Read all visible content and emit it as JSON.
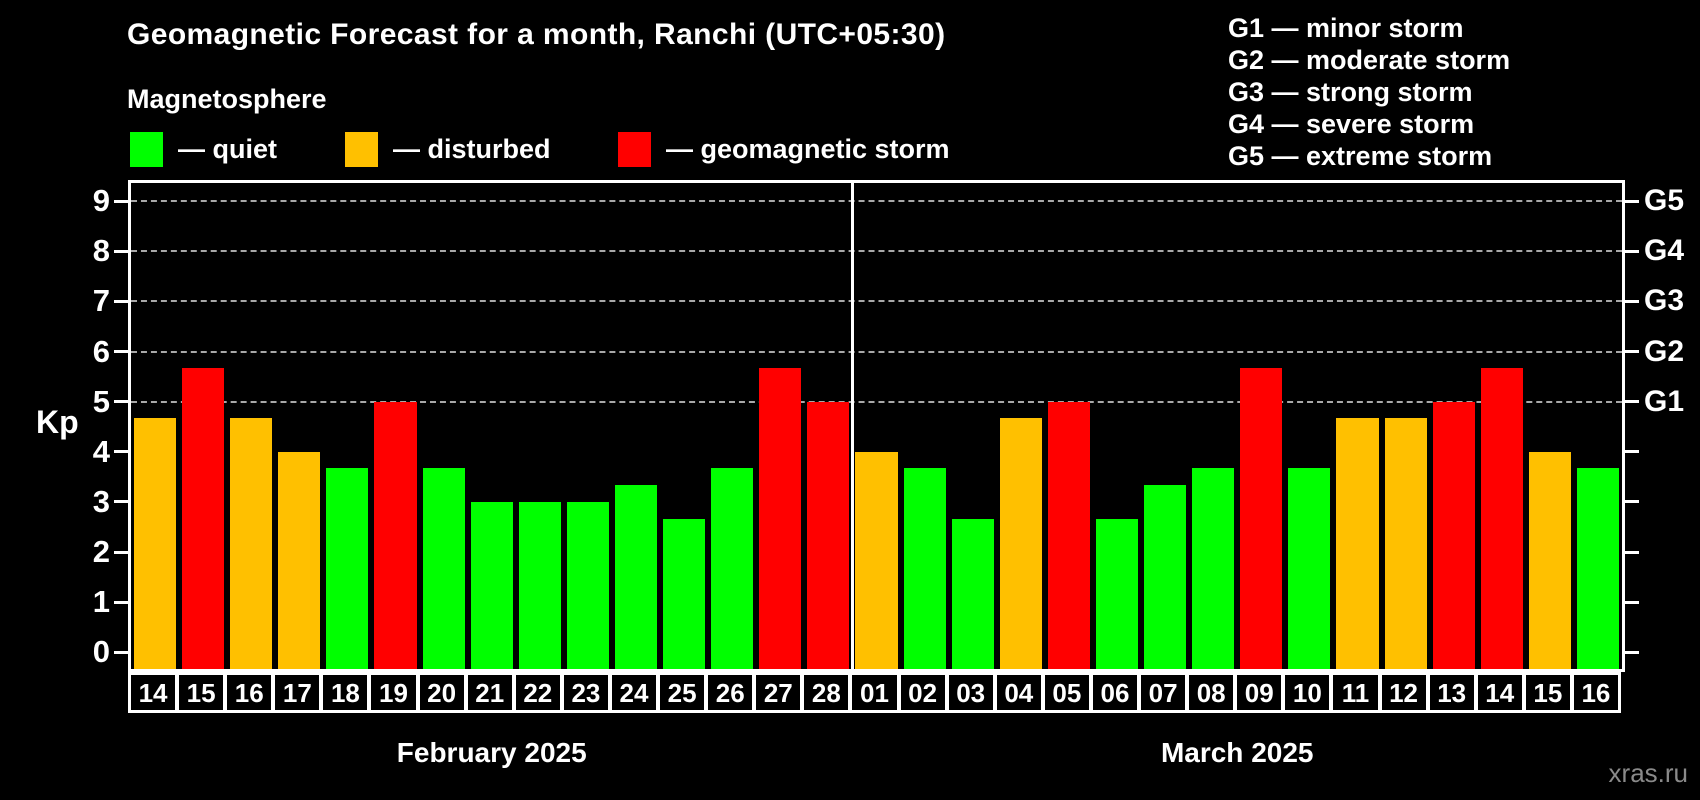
{
  "header": {
    "title": "Geomagnetic Forecast for a month, Ranchi (UTC+05:30)",
    "subtitle": "Magnetosphere"
  },
  "legend": {
    "items": [
      {
        "name": "quiet",
        "label": "— quiet",
        "color": "#00ff00"
      },
      {
        "name": "disturbed",
        "label": "— disturbed",
        "color": "#ffc000"
      },
      {
        "name": "storm",
        "label": "— geomagnetic storm",
        "color": "#ff0000"
      }
    ]
  },
  "storm_scale": {
    "lines": [
      "G1 — minor storm",
      "G2 — moderate storm",
      "G3 — strong storm",
      "G4 — severe storm",
      "G5 — extreme storm"
    ]
  },
  "watermark": "xras.ru",
  "colors": {
    "background": "#000000",
    "text": "#ffffff",
    "grid": "#a8a8a8",
    "frame": "#ffffff",
    "quiet": "#00ff00",
    "disturbed": "#ffc000",
    "storm": "#ff0000"
  },
  "chart_data": {
    "type": "bar",
    "ylabel": "Kp",
    "xlabel": "",
    "ylim": [
      -0.33,
      9.36
    ],
    "y_ticks": [
      0,
      1,
      2,
      3,
      4,
      5,
      6,
      7,
      8,
      9
    ],
    "grid": "horizontal dashed lines at Kp 5-9",
    "gridline_levels": [
      5,
      6,
      7,
      8,
      9
    ],
    "right_axis_labels": [
      {
        "text": "G5",
        "kp": 9
      },
      {
        "text": "G4",
        "kp": 8
      },
      {
        "text": "G3",
        "kp": 7
      },
      {
        "text": "G2",
        "kp": 6
      },
      {
        "text": "G1",
        "kp": 5
      }
    ],
    "legend_position": "top-left",
    "groups": [
      {
        "label": "February 2025",
        "days": [
          "14",
          "15",
          "16",
          "17",
          "18",
          "19",
          "20",
          "21",
          "22",
          "23",
          "24",
          "25",
          "26",
          "27",
          "28"
        ],
        "values": [
          4.67,
          5.67,
          4.67,
          4.0,
          3.67,
          5.0,
          3.67,
          3.0,
          3.0,
          3.0,
          3.33,
          2.67,
          3.67,
          5.67,
          5.0
        ],
        "status": [
          "disturbed",
          "storm",
          "disturbed",
          "disturbed",
          "quiet",
          "storm",
          "quiet",
          "quiet",
          "quiet",
          "quiet",
          "quiet",
          "quiet",
          "quiet",
          "storm",
          "storm"
        ]
      },
      {
        "label": "March 2025",
        "days": [
          "01",
          "02",
          "03",
          "04",
          "05",
          "06",
          "07",
          "08",
          "09",
          "10",
          "11",
          "12",
          "13",
          "14",
          "15",
          "16"
        ],
        "values": [
          4.0,
          3.67,
          2.67,
          4.67,
          5.0,
          2.67,
          3.33,
          3.67,
          5.67,
          3.67,
          4.67,
          4.67,
          5.0,
          5.67,
          4.0,
          3.67
        ],
        "status": [
          "disturbed",
          "quiet",
          "quiet",
          "disturbed",
          "storm",
          "quiet",
          "quiet",
          "quiet",
          "storm",
          "quiet",
          "disturbed",
          "disturbed",
          "storm",
          "storm",
          "disturbed",
          "quiet"
        ]
      }
    ]
  }
}
